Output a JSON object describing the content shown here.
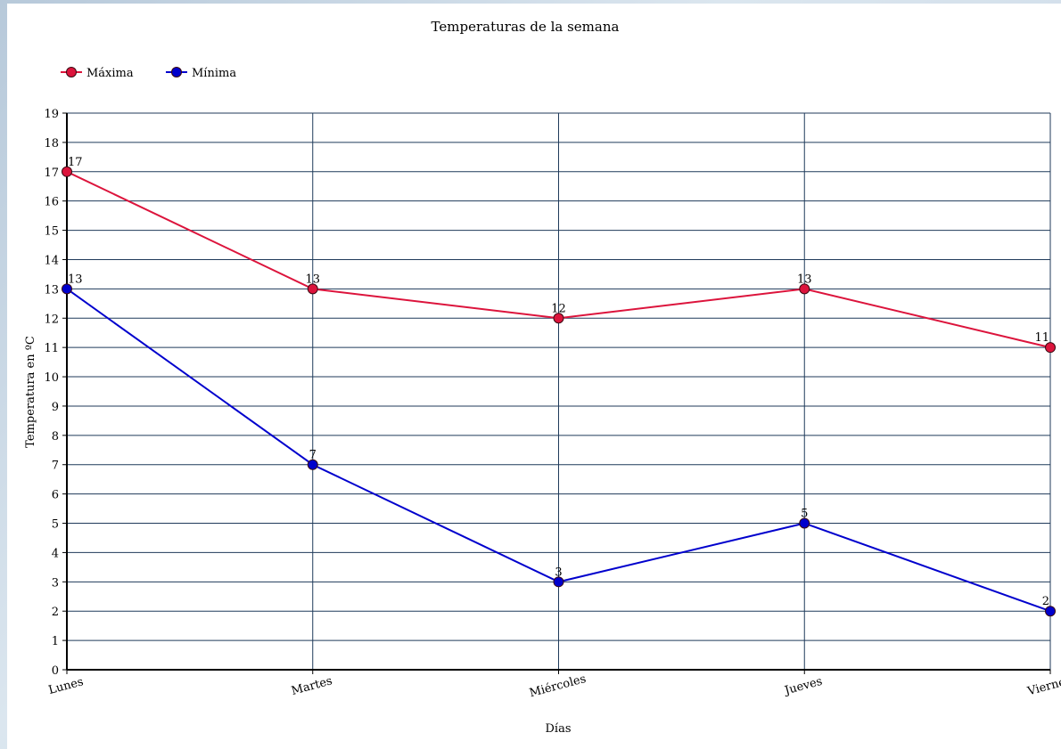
{
  "chart_data": {
    "type": "line",
    "title": "Temperaturas de la semana",
    "xlabel": "Días",
    "ylabel": "Temperatura en ºC",
    "categories": [
      "Lunes",
      "Martes",
      "Miércoles",
      "Jueves",
      "Viernes"
    ],
    "ylim": [
      0,
      19
    ],
    "yticks": [
      0,
      1,
      2,
      3,
      4,
      5,
      6,
      7,
      8,
      9,
      10,
      11,
      12,
      13,
      14,
      15,
      16,
      17,
      18,
      19
    ],
    "grid": true,
    "legend_position": "top-left",
    "series": [
      {
        "name": "Máxima",
        "color": "#dc143c",
        "values": [
          17,
          13,
          12,
          13,
          11
        ]
      },
      {
        "name": "Mínima",
        "color": "#0000cd",
        "values": [
          13,
          7,
          3,
          5,
          2
        ]
      }
    ]
  }
}
